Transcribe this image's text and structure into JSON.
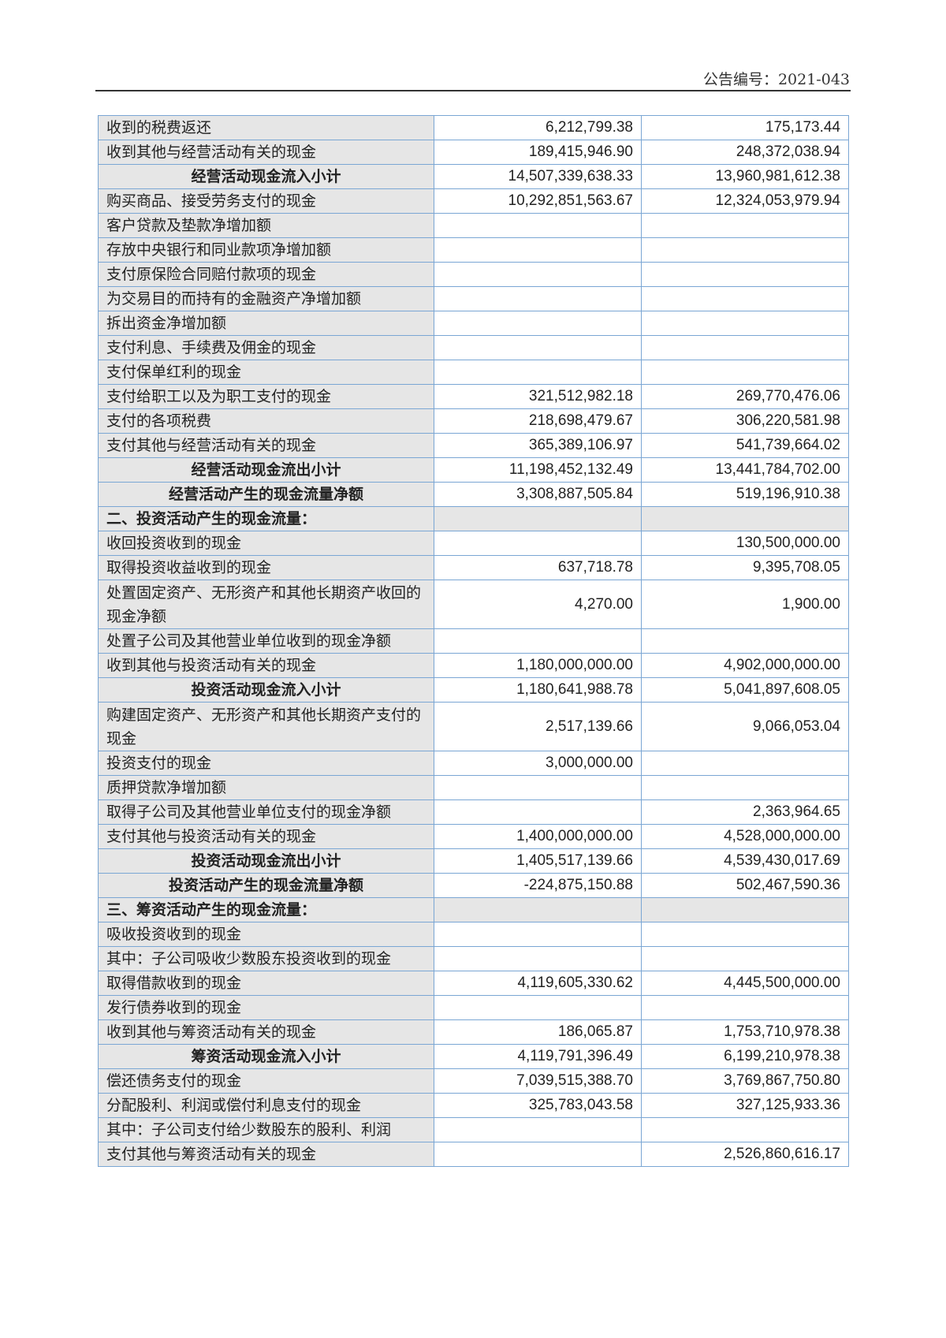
{
  "header": {
    "doc_number": "公告编号：2021-043"
  },
  "colors": {
    "border": "#7aa6d4",
    "label_bg": "#e6e6e6"
  },
  "rows": [
    {
      "label": "收到的税费返还",
      "current": "6,212,799.38",
      "previous": "175,173.44",
      "type": "item"
    },
    {
      "label": "收到其他与经营活动有关的现金",
      "current": "189,415,946.90",
      "previous": "248,372,038.94",
      "type": "item"
    },
    {
      "label": "经营活动现金流入小计",
      "current": "14,507,339,638.33",
      "previous": "13,960,981,612.38",
      "type": "subtotal"
    },
    {
      "label": "购买商品、接受劳务支付的现金",
      "current": "10,292,851,563.67",
      "previous": "12,324,053,979.94",
      "type": "item"
    },
    {
      "label": "客户贷款及垫款净增加额",
      "current": "",
      "previous": "",
      "type": "item"
    },
    {
      "label": "存放中央银行和同业款项净增加额",
      "current": "",
      "previous": "",
      "type": "item"
    },
    {
      "label": "支付原保险合同赔付款项的现金",
      "current": "",
      "previous": "",
      "type": "item"
    },
    {
      "label": "为交易目的而持有的金融资产净增加额",
      "current": "",
      "previous": "",
      "type": "item"
    },
    {
      "label": "拆出资金净增加额",
      "current": "",
      "previous": "",
      "type": "item"
    },
    {
      "label": "支付利息、手续费及佣金的现金",
      "current": "",
      "previous": "",
      "type": "item"
    },
    {
      "label": "支付保单红利的现金",
      "current": "",
      "previous": "",
      "type": "item"
    },
    {
      "label": "支付给职工以及为职工支付的现金",
      "current": "321,512,982.18",
      "previous": "269,770,476.06",
      "type": "item"
    },
    {
      "label": "支付的各项税费",
      "current": "218,698,479.67",
      "previous": "306,220,581.98",
      "type": "item"
    },
    {
      "label": "支付其他与经营活动有关的现金",
      "current": "365,389,106.97",
      "previous": "541,739,664.02",
      "type": "item"
    },
    {
      "label": "经营活动现金流出小计",
      "current": "11,198,452,132.49",
      "previous": "13,441,784,702.00",
      "type": "subtotal"
    },
    {
      "label": "经营活动产生的现金流量净额",
      "current": "3,308,887,505.84",
      "previous": "519,196,910.38",
      "type": "subtotal"
    },
    {
      "label": "二、投资活动产生的现金流量：",
      "current": "",
      "previous": "",
      "type": "section"
    },
    {
      "label": "收回投资收到的现金",
      "current": "",
      "previous": "130,500,000.00",
      "type": "item"
    },
    {
      "label": "取得投资收益收到的现金",
      "current": "637,718.78",
      "previous": "9,395,708.05",
      "type": "item"
    },
    {
      "label": "处置固定资产、无形资产和其他长期资产收回的现金净额",
      "current": "4,270.00",
      "previous": "1,900.00",
      "type": "double"
    },
    {
      "label": "处置子公司及其他营业单位收到的现金净额",
      "current": "",
      "previous": "",
      "type": "item"
    },
    {
      "label": "收到其他与投资活动有关的现金",
      "current": "1,180,000,000.00",
      "previous": "4,902,000,000.00",
      "type": "item"
    },
    {
      "label": "投资活动现金流入小计",
      "current": "1,180,641,988.78",
      "previous": "5,041,897,608.05",
      "type": "subtotal"
    },
    {
      "label": "购建固定资产、无形资产和其他长期资产支付的现金",
      "current": "2,517,139.66",
      "previous": "9,066,053.04",
      "type": "double"
    },
    {
      "label": "投资支付的现金",
      "current": "3,000,000.00",
      "previous": "",
      "type": "item"
    },
    {
      "label": "质押贷款净增加额",
      "current": "",
      "previous": "",
      "type": "item"
    },
    {
      "label": "取得子公司及其他营业单位支付的现金净额",
      "current": "",
      "previous": "2,363,964.65",
      "type": "item"
    },
    {
      "label": "支付其他与投资活动有关的现金",
      "current": "1,400,000,000.00",
      "previous": "4,528,000,000.00",
      "type": "item"
    },
    {
      "label": "投资活动现金流出小计",
      "current": "1,405,517,139.66",
      "previous": "4,539,430,017.69",
      "type": "subtotal"
    },
    {
      "label": "投资活动产生的现金流量净额",
      "current": "-224,875,150.88",
      "previous": "502,467,590.36",
      "type": "subtotal"
    },
    {
      "label": "三、筹资活动产生的现金流量：",
      "current": "",
      "previous": "",
      "type": "section"
    },
    {
      "label": "吸收投资收到的现金",
      "current": "",
      "previous": "",
      "type": "item"
    },
    {
      "label": "其中：子公司吸收少数股东投资收到的现金",
      "current": "",
      "previous": "",
      "type": "item"
    },
    {
      "label": "取得借款收到的现金",
      "current": "4,119,605,330.62",
      "previous": "4,445,500,000.00",
      "type": "item"
    },
    {
      "label": "发行债券收到的现金",
      "current": "",
      "previous": "",
      "type": "item"
    },
    {
      "label": "收到其他与筹资活动有关的现金",
      "current": "186,065.87",
      "previous": "1,753,710,978.38",
      "type": "item"
    },
    {
      "label": "筹资活动现金流入小计",
      "current": "4,119,791,396.49",
      "previous": "6,199,210,978.38",
      "type": "subtotal"
    },
    {
      "label": "偿还债务支付的现金",
      "current": "7,039,515,388.70",
      "previous": "3,769,867,750.80",
      "type": "item"
    },
    {
      "label": "分配股利、利润或偿付利息支付的现金",
      "current": "325,783,043.58",
      "previous": "327,125,933.36",
      "type": "item"
    },
    {
      "label": "其中：子公司支付给少数股东的股利、利润",
      "current": "",
      "previous": "",
      "type": "item"
    },
    {
      "label": "支付其他与筹资活动有关的现金",
      "current": "",
      "previous": "2,526,860,616.17",
      "type": "item"
    }
  ]
}
